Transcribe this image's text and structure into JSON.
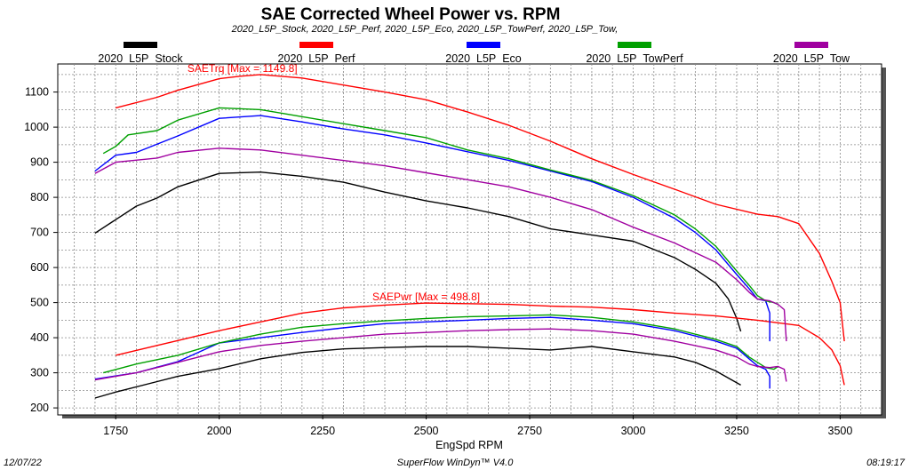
{
  "chart_data": {
    "type": "line",
    "title": "SAE Corrected Wheel Power vs. RPM",
    "subtitle": "2020_L5P_Stock, 2020_L5P_Perf, 2020_L5P_Eco, 2020_L5P_TowPerf, 2020_L5P_Tow,",
    "xlabel": "EngSpd RPM",
    "ylabel": "",
    "xlim": [
      1610,
      3600
    ],
    "ylim": [
      180,
      1180
    ],
    "x_ticks": [
      1750,
      2000,
      2250,
      2500,
      2750,
      3000,
      3250,
      3500
    ],
    "y_ticks": [
      200,
      300,
      400,
      500,
      600,
      700,
      800,
      900,
      1000,
      1100
    ],
    "grid": true,
    "legend_position": "top",
    "annotations": [
      {
        "text": "SAETrq [Max = 1149.8]",
        "x": 2056,
        "y": 1149.8,
        "color": "#ff0000"
      },
      {
        "text": "SAEPwr [Max = 498.8]",
        "x": 2500,
        "y": 498.8,
        "color": "#ff0000"
      }
    ],
    "series": [
      {
        "name": "2020_L5P_Stock",
        "color": "#000000",
        "torque": [
          [
            1700,
            698
          ],
          [
            1800,
            775
          ],
          [
            1850,
            798
          ],
          [
            1900,
            830
          ],
          [
            2000,
            868
          ],
          [
            2100,
            872
          ],
          [
            2200,
            860
          ],
          [
            2300,
            843
          ],
          [
            2400,
            815
          ],
          [
            2500,
            790
          ],
          [
            2600,
            770
          ],
          [
            2700,
            745
          ],
          [
            2800,
            710
          ],
          [
            2900,
            693
          ],
          [
            3000,
            675
          ],
          [
            3100,
            628
          ],
          [
            3150,
            595
          ],
          [
            3200,
            555
          ],
          [
            3230,
            510
          ],
          [
            3250,
            455
          ],
          [
            3260,
            418
          ]
        ],
        "power": [
          [
            1700,
            228
          ],
          [
            1750,
            245
          ],
          [
            1850,
            275
          ],
          [
            1900,
            290
          ],
          [
            2000,
            312
          ],
          [
            2100,
            340
          ],
          [
            2200,
            358
          ],
          [
            2300,
            368
          ],
          [
            2400,
            372
          ],
          [
            2500,
            375
          ],
          [
            2600,
            375
          ],
          [
            2700,
            370
          ],
          [
            2800,
            365
          ],
          [
            2900,
            375
          ],
          [
            3000,
            360
          ],
          [
            3100,
            345
          ],
          [
            3150,
            330
          ],
          [
            3200,
            305
          ],
          [
            3230,
            285
          ],
          [
            3260,
            265
          ]
        ]
      },
      {
        "name": "2020_L5P_Perf",
        "color": "#ff0000",
        "torque": [
          [
            1750,
            1055
          ],
          [
            1850,
            1085
          ],
          [
            1900,
            1105
          ],
          [
            2000,
            1138
          ],
          [
            2050,
            1145
          ],
          [
            2100,
            1149.8
          ],
          [
            2200,
            1140
          ],
          [
            2300,
            1120
          ],
          [
            2400,
            1100
          ],
          [
            2500,
            1078
          ],
          [
            2600,
            1043
          ],
          [
            2700,
            1005
          ],
          [
            2800,
            960
          ],
          [
            2900,
            910
          ],
          [
            3000,
            865
          ],
          [
            3100,
            823
          ],
          [
            3200,
            780
          ],
          [
            3300,
            752
          ],
          [
            3350,
            745
          ],
          [
            3400,
            725
          ],
          [
            3450,
            640
          ],
          [
            3480,
            560
          ],
          [
            3500,
            500
          ],
          [
            3510,
            390
          ]
        ],
        "power": [
          [
            1750,
            350
          ],
          [
            1850,
            378
          ],
          [
            1900,
            392
          ],
          [
            2000,
            420
          ],
          [
            2100,
            445
          ],
          [
            2200,
            470
          ],
          [
            2300,
            485
          ],
          [
            2400,
            493
          ],
          [
            2500,
            498.8
          ],
          [
            2600,
            497
          ],
          [
            2700,
            495
          ],
          [
            2800,
            490
          ],
          [
            2900,
            487
          ],
          [
            3000,
            480
          ],
          [
            3100,
            470
          ],
          [
            3200,
            462
          ],
          [
            3300,
            450
          ],
          [
            3400,
            435
          ],
          [
            3450,
            400
          ],
          [
            3480,
            365
          ],
          [
            3500,
            320
          ],
          [
            3510,
            265
          ]
        ]
      },
      {
        "name": "2020_L5P_Eco",
        "color": "#0000ff",
        "torque": [
          [
            1700,
            875
          ],
          [
            1750,
            920
          ],
          [
            1800,
            928
          ],
          [
            1900,
            975
          ],
          [
            2000,
            1025
          ],
          [
            2100,
            1033
          ],
          [
            2200,
            1015
          ],
          [
            2300,
            995
          ],
          [
            2400,
            978
          ],
          [
            2500,
            955
          ],
          [
            2600,
            930
          ],
          [
            2700,
            905
          ],
          [
            2800,
            875
          ],
          [
            2900,
            845
          ],
          [
            3000,
            800
          ],
          [
            3100,
            740
          ],
          [
            3150,
            700
          ],
          [
            3200,
            650
          ],
          [
            3250,
            580
          ],
          [
            3280,
            540
          ],
          [
            3300,
            510
          ],
          [
            3320,
            505
          ],
          [
            3330,
            470
          ],
          [
            3330,
            390
          ]
        ],
        "power": [
          [
            1700,
            282
          ],
          [
            1800,
            300
          ],
          [
            1900,
            332
          ],
          [
            2000,
            385
          ],
          [
            2100,
            400
          ],
          [
            2200,
            415
          ],
          [
            2300,
            428
          ],
          [
            2400,
            440
          ],
          [
            2500,
            445
          ],
          [
            2600,
            450
          ],
          [
            2700,
            455
          ],
          [
            2800,
            458
          ],
          [
            2900,
            450
          ],
          [
            3000,
            440
          ],
          [
            3100,
            420
          ],
          [
            3200,
            390
          ],
          [
            3250,
            370
          ],
          [
            3280,
            340
          ],
          [
            3300,
            320
          ],
          [
            3320,
            310
          ],
          [
            3330,
            290
          ],
          [
            3330,
            255
          ]
        ]
      },
      {
        "name": "2020_L5P_TowPerf",
        "color": "#00a000",
        "torque": [
          [
            1720,
            925
          ],
          [
            1750,
            945
          ],
          [
            1780,
            978
          ],
          [
            1850,
            990
          ],
          [
            1900,
            1020
          ],
          [
            2000,
            1055
          ],
          [
            2100,
            1050
          ],
          [
            2200,
            1030
          ],
          [
            2300,
            1010
          ],
          [
            2400,
            990
          ],
          [
            2500,
            970
          ],
          [
            2600,
            935
          ],
          [
            2700,
            910
          ],
          [
            2800,
            878
          ],
          [
            2900,
            848
          ],
          [
            3000,
            805
          ],
          [
            3100,
            750
          ],
          [
            3150,
            710
          ],
          [
            3200,
            660
          ],
          [
            3250,
            590
          ],
          [
            3280,
            550
          ],
          [
            3300,
            520
          ],
          [
            3320,
            505
          ],
          [
            3340,
            500
          ],
          [
            3350,
            495
          ]
        ],
        "power": [
          [
            1720,
            300
          ],
          [
            1800,
            325
          ],
          [
            1900,
            350
          ],
          [
            2000,
            385
          ],
          [
            2100,
            410
          ],
          [
            2200,
            430
          ],
          [
            2300,
            440
          ],
          [
            2400,
            448
          ],
          [
            2500,
            455
          ],
          [
            2600,
            460
          ],
          [
            2700,
            462
          ],
          [
            2800,
            465
          ],
          [
            2900,
            458
          ],
          [
            3000,
            445
          ],
          [
            3100,
            425
          ],
          [
            3200,
            395
          ],
          [
            3250,
            375
          ],
          [
            3280,
            345
          ],
          [
            3300,
            330
          ],
          [
            3320,
            315
          ],
          [
            3340,
            310
          ],
          [
            3350,
            318
          ]
        ]
      },
      {
        "name": "2020_L5P_Tow",
        "color": "#a000a0",
        "torque": [
          [
            1700,
            868
          ],
          [
            1750,
            900
          ],
          [
            1850,
            912
          ],
          [
            1900,
            928
          ],
          [
            2000,
            940
          ],
          [
            2100,
            935
          ],
          [
            2200,
            920
          ],
          [
            2300,
            905
          ],
          [
            2400,
            890
          ],
          [
            2500,
            870
          ],
          [
            2600,
            850
          ],
          [
            2700,
            830
          ],
          [
            2800,
            800
          ],
          [
            2900,
            765
          ],
          [
            3000,
            715
          ],
          [
            3100,
            670
          ],
          [
            3200,
            615
          ],
          [
            3250,
            565
          ],
          [
            3280,
            530
          ],
          [
            3300,
            510
          ],
          [
            3330,
            505
          ],
          [
            3350,
            495
          ],
          [
            3365,
            480
          ],
          [
            3370,
            390
          ]
        ],
        "power": [
          [
            1700,
            280
          ],
          [
            1800,
            300
          ],
          [
            1900,
            330
          ],
          [
            2000,
            360
          ],
          [
            2100,
            378
          ],
          [
            2200,
            390
          ],
          [
            2300,
            400
          ],
          [
            2400,
            410
          ],
          [
            2500,
            415
          ],
          [
            2600,
            420
          ],
          [
            2700,
            423
          ],
          [
            2800,
            425
          ],
          [
            2900,
            420
          ],
          [
            3000,
            410
          ],
          [
            3100,
            390
          ],
          [
            3200,
            365
          ],
          [
            3250,
            345
          ],
          [
            3280,
            325
          ],
          [
            3300,
            318
          ],
          [
            3330,
            315
          ],
          [
            3350,
            318
          ],
          [
            3365,
            310
          ],
          [
            3370,
            275
          ]
        ]
      }
    ]
  },
  "footer": {
    "date": "12/07/22",
    "software": "SuperFlow WinDyn™  V4.0",
    "time": "08:19:17"
  }
}
